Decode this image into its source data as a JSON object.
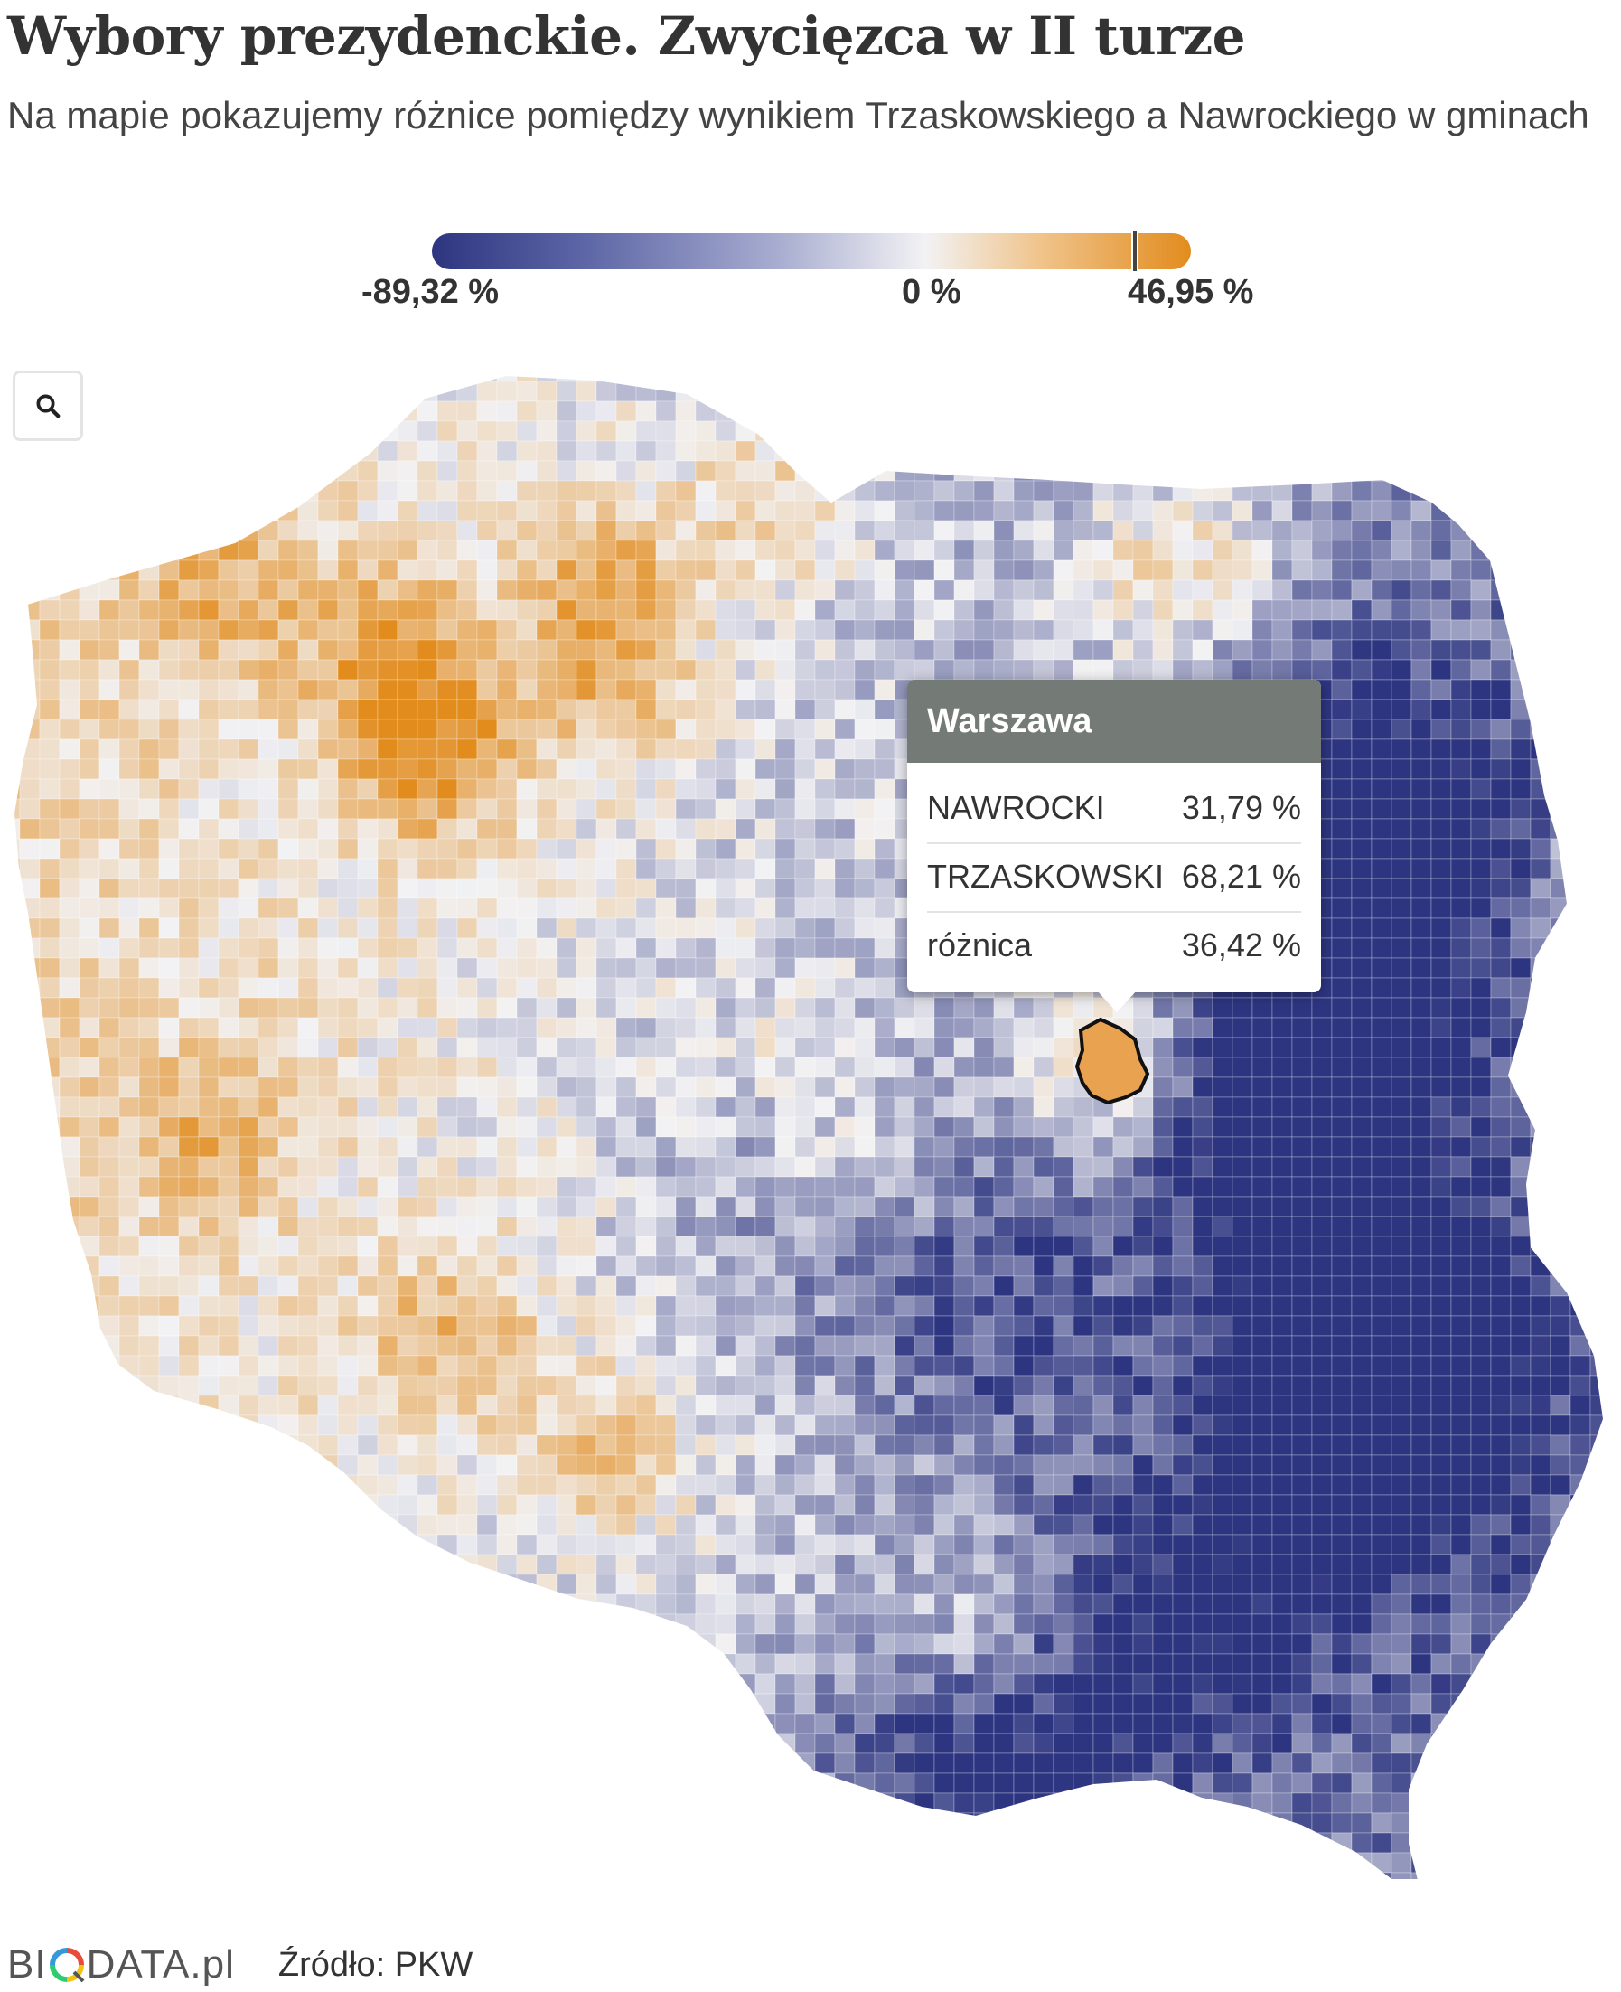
{
  "header": {
    "title": "Wybory prezydenckie. Zwycięzca w II turze",
    "subtitle": "Na mapie pokazujemy różnice pomiędzy wynikiem Trzaskowskiego a Nawrockiego w gminach"
  },
  "legend": {
    "min_label": "-89,32 %",
    "mid_label": "0 %",
    "max_label": "46,95 %",
    "min_value": -89.32,
    "max_value": 46.95,
    "marker_value": 36.42,
    "colors": {
      "negative": "#2d3580",
      "neutral": "#f2f2f4",
      "positive": "#e28c1e"
    }
  },
  "controls": {
    "zoom_icon": "search-icon"
  },
  "tooltip": {
    "region": "Warszawa",
    "rows": [
      {
        "label": "NAWROCKI",
        "value": "31,79 %"
      },
      {
        "label": "TRZASKOWSKI",
        "value": "68,21 %"
      },
      {
        "label": "różnica",
        "value": "36,42 %"
      }
    ]
  },
  "footer": {
    "logo_pre": "BI",
    "logo_post": "DATA.pl",
    "source": "Źródło: PKW"
  }
}
